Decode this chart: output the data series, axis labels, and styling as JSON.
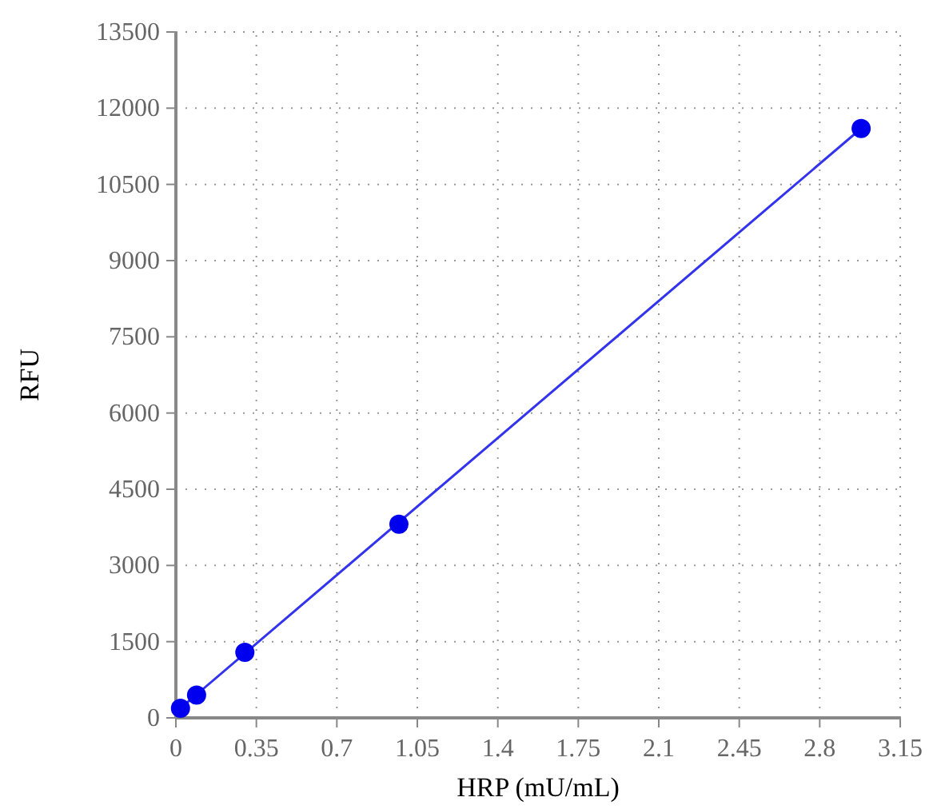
{
  "chart_data": {
    "type": "scatter",
    "xlabel": "HRP (mU/mL)",
    "ylabel": "RFU",
    "xlim": [
      0,
      3.15
    ],
    "xticks": [
      0,
      0.35,
      0.7,
      1.05,
      1.4,
      1.75,
      2.1,
      2.45,
      2.8,
      3.15
    ],
    "ylim": [
      0,
      13500
    ],
    "yticks": [
      0,
      1500,
      3000,
      4500,
      6000,
      7500,
      9000,
      10500,
      12000,
      13500
    ],
    "grid": true,
    "series": [
      {
        "type": "line",
        "color": "#3333ee",
        "x": [
          0.02,
          2.98
        ],
        "values": [
          190,
          11600
        ],
        "marker": "none",
        "line_style": "solid"
      },
      {
        "color": "#0000ee",
        "x": [
          0.02,
          0.09,
          0.3,
          0.97,
          2.98
        ],
        "values": [
          190,
          450,
          1290,
          3810,
          11600
        ],
        "marker": "circle"
      }
    ]
  }
}
